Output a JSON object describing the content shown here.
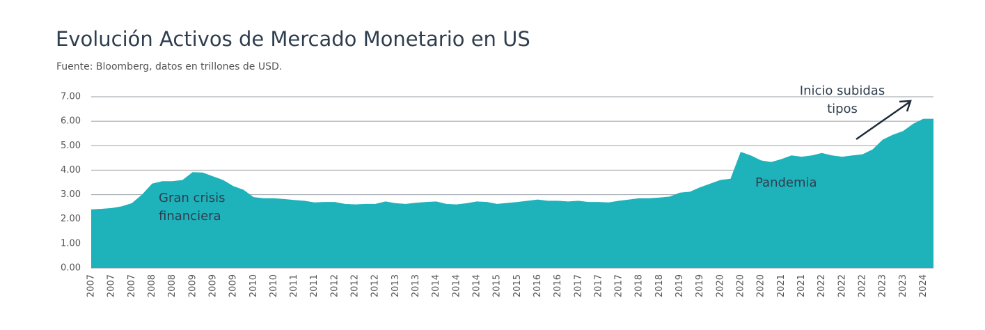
{
  "chart_data": {
    "type": "area",
    "title": "Evolución Activos de Mercado Monetario en US",
    "subtitle": "Fuente: Bloomberg, datos en trillones de USD.",
    "color": "#1eb2ba",
    "grid": true,
    "annotations": [
      {
        "lines": [
          "Gran crisis",
          "financiera"
        ]
      },
      {
        "lines": [
          "Pandemia"
        ]
      },
      {
        "lines": [
          "Inicio subidas",
          "tipos"
        ]
      }
    ],
    "categories": [
      "2007",
      null,
      "2007",
      null,
      "2007",
      null,
      "2008",
      null,
      "2008",
      null,
      "2009",
      null,
      "2009",
      null,
      "2009",
      null,
      "2010",
      null,
      "2010",
      null,
      "2011",
      null,
      "2011",
      null,
      "2012",
      null,
      "2012",
      null,
      "2012",
      null,
      "2013",
      null,
      "2013",
      null,
      "2014",
      null,
      "2014",
      null,
      "2014",
      null,
      "2015",
      null,
      "2015",
      null,
      "2016",
      null,
      "2016",
      null,
      "2017",
      null,
      "2017",
      null,
      "2017",
      null,
      "2018",
      null,
      "2018",
      null,
      "2019",
      null,
      "2019",
      null,
      "2020",
      null,
      "2020",
      null,
      "2020",
      null,
      "2021",
      null,
      "2021",
      null,
      "2022",
      null,
      "2022",
      null,
      "2022",
      null,
      "2023",
      null,
      "2023",
      null,
      "2024",
      null
    ],
    "values": [
      2.4,
      2.42,
      2.45,
      2.52,
      2.65,
      3.0,
      3.45,
      3.55,
      3.55,
      3.6,
      3.92,
      3.9,
      3.75,
      3.6,
      3.35,
      3.2,
      2.9,
      2.85,
      2.85,
      2.82,
      2.78,
      2.75,
      2.68,
      2.7,
      2.7,
      2.62,
      2.6,
      2.62,
      2.62,
      2.72,
      2.65,
      2.62,
      2.67,
      2.7,
      2.72,
      2.62,
      2.6,
      2.65,
      2.72,
      2.7,
      2.62,
      2.66,
      2.7,
      2.75,
      2.8,
      2.75,
      2.75,
      2.72,
      2.75,
      2.7,
      2.7,
      2.68,
      2.75,
      2.8,
      2.85,
      2.85,
      2.88,
      2.92,
      3.08,
      3.12,
      3.3,
      3.45,
      3.6,
      3.65,
      4.75,
      4.6,
      4.4,
      4.33,
      4.45,
      4.6,
      4.55,
      4.6,
      4.7,
      4.6,
      4.55,
      4.6,
      4.65,
      4.85,
      5.25,
      5.45,
      5.6,
      5.9,
      6.1,
      6.1
    ],
    "ylim": [
      0,
      7
    ],
    "yticks": [
      {
        "value": 0,
        "label": "0.00"
      },
      {
        "value": 1,
        "label": "1.00"
      },
      {
        "value": 2,
        "label": "2.00"
      },
      {
        "value": 3,
        "label": "3.00"
      },
      {
        "value": 4,
        "label": "4.00"
      },
      {
        "value": 5,
        "label": "5.00"
      },
      {
        "value": 6,
        "label": "6.00"
      },
      {
        "value": 7,
        "label": "7.00"
      }
    ]
  }
}
